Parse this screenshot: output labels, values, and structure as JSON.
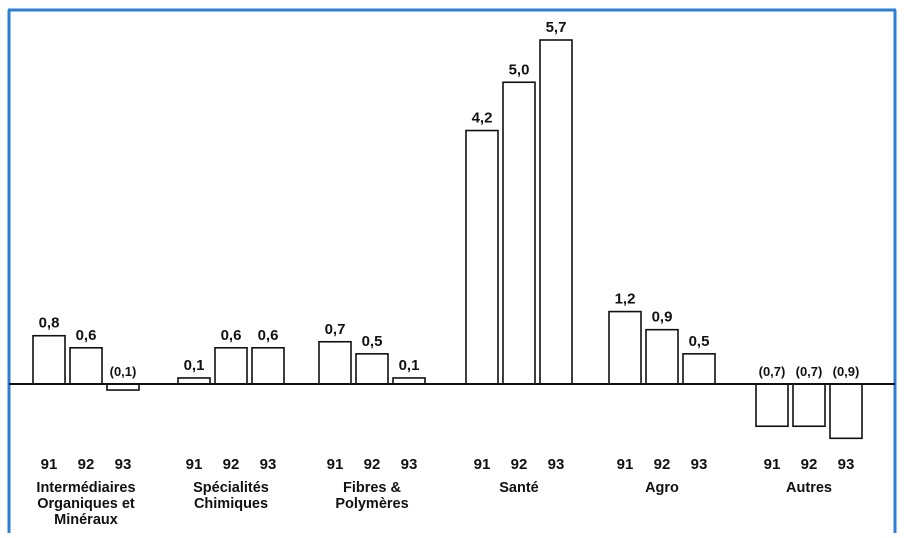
{
  "chart_data": {
    "type": "bar",
    "title": "",
    "xlabel": "",
    "ylabel": "",
    "colors": {
      "border": "#2b7fd4",
      "bar_stroke": "#111111",
      "bar_fill": "#ffffff",
      "axis": "#111111"
    },
    "grid": false,
    "ylim": [
      -0.9,
      5.7
    ],
    "groups": [
      {
        "name": "Intermédiaires Organiques et Minéraux",
        "name_lines": [
          "Intermédiaires",
          "Organiques et",
          "Minéraux"
        ],
        "bars": [
          {
            "year": "91",
            "value": 0.8,
            "label": "0,8"
          },
          {
            "year": "92",
            "value": 0.6,
            "label": "0,6"
          },
          {
            "year": "93",
            "value": -0.1,
            "label": "(0,1)"
          }
        ]
      },
      {
        "name": "Spécialités Chimiques",
        "name_lines": [
          "Spécialités",
          "Chimiques"
        ],
        "bars": [
          {
            "year": "91",
            "value": 0.1,
            "label": "0,1"
          },
          {
            "year": "92",
            "value": 0.6,
            "label": "0,6"
          },
          {
            "year": "93",
            "value": 0.6,
            "label": "0,6"
          }
        ]
      },
      {
        "name": "Fibres & Polymères",
        "name_lines": [
          "Fibres &",
          "Polymères"
        ],
        "bars": [
          {
            "year": "91",
            "value": 0.7,
            "label": "0,7"
          },
          {
            "year": "92",
            "value": 0.5,
            "label": "0,5"
          },
          {
            "year": "93",
            "value": 0.1,
            "label": "0,1"
          }
        ]
      },
      {
        "name": "Santé",
        "name_lines": [
          "Santé"
        ],
        "bars": [
          {
            "year": "91",
            "value": 4.2,
            "label": "4,2"
          },
          {
            "year": "92",
            "value": 5.0,
            "label": "5,0"
          },
          {
            "year": "93",
            "value": 5.7,
            "label": "5,7"
          }
        ]
      },
      {
        "name": "Agro",
        "name_lines": [
          "Agro"
        ],
        "bars": [
          {
            "year": "91",
            "value": 1.2,
            "label": "1,2"
          },
          {
            "year": "92",
            "value": 0.9,
            "label": "0,9"
          },
          {
            "year": "93",
            "value": 0.5,
            "label": "0,5"
          }
        ]
      },
      {
        "name": "Autres",
        "name_lines": [
          "Autres"
        ],
        "bars": [
          {
            "year": "91",
            "value": -0.7,
            "label": "(0,7)"
          },
          {
            "year": "92",
            "value": -0.7,
            "label": "(0,7)"
          },
          {
            "year": "93",
            "value": -0.9,
            "label": "(0,9)"
          }
        ]
      }
    ]
  }
}
